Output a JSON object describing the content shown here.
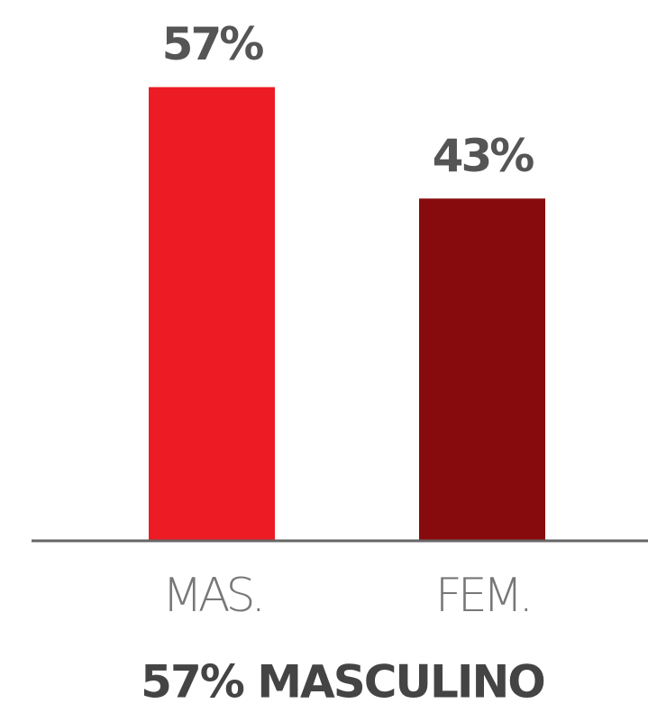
{
  "chart_data": {
    "type": "bar",
    "title": "57% MASCULINO",
    "categories": [
      "MAS.",
      "FEM."
    ],
    "values": [
      57,
      43
    ],
    "value_labels": [
      "57%",
      "43%"
    ],
    "colors": [
      "#ed1c24",
      "#870b0d"
    ],
    "ylim": [
      0,
      65
    ]
  }
}
